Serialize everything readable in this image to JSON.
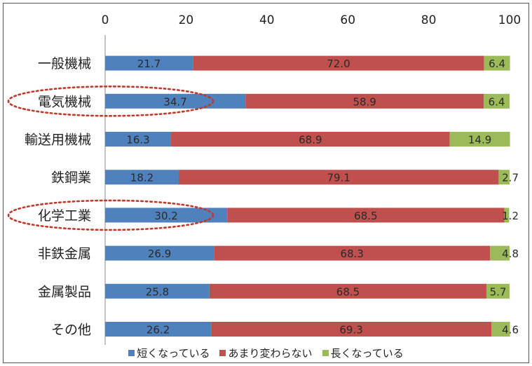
{
  "chart_data": {
    "type": "bar",
    "orientation": "horizontal",
    "stacked": true,
    "title": "",
    "xlabel": "",
    "ylabel": "",
    "xlim": [
      0,
      100
    ],
    "x_ticks": [
      "0",
      "20",
      "40",
      "60",
      "80",
      "100"
    ],
    "x_axis_position": "top",
    "grid": false,
    "legend_position": "bottom",
    "categories": [
      "一般機械",
      "電気機械",
      "輸送用機械",
      "鉄鋼業",
      "化学工業",
      "非鉄金属",
      "金属製品",
      "その他"
    ],
    "series": [
      {
        "name": "短くなっている",
        "color": "#4f81bd",
        "values": [
          21.7,
          34.7,
          16.3,
          18.2,
          30.2,
          26.9,
          25.8,
          26.2
        ]
      },
      {
        "name": "あまり変わらない",
        "color": "#c0504d",
        "values": [
          72.0,
          58.9,
          68.9,
          79.1,
          68.5,
          68.3,
          68.5,
          69.3
        ]
      },
      {
        "name": "長くなっている",
        "color": "#9bbb59",
        "values": [
          6.4,
          6.4,
          14.9,
          2.7,
          1.2,
          4.8,
          5.7,
          4.6
        ]
      }
    ],
    "data_labels": [
      [
        "21.7",
        "34.7",
        "16.3",
        "18.2",
        "30.2",
        "26.9",
        "25.8",
        "26.2"
      ],
      [
        "72.0",
        "58.9",
        "68.9",
        "79.1",
        "68.5",
        "68.3",
        "68.5",
        "69.3"
      ],
      [
        "6.4",
        "6.4",
        "14.9",
        "2.7",
        "1.2",
        "4.8",
        "5.7",
        "4.6"
      ]
    ],
    "highlighted_categories": [
      "電気機械",
      "化学工業"
    ],
    "highlight_color": "#c0392b"
  }
}
